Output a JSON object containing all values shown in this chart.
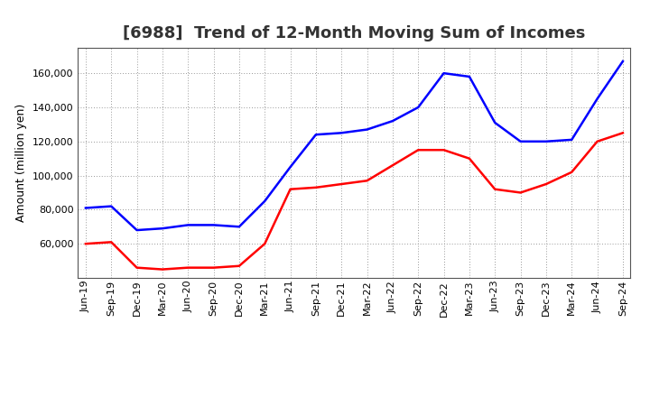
{
  "title": "[6988]  Trend of 12-Month Moving Sum of Incomes",
  "ylabel": "Amount (million yen)",
  "x_labels": [
    "Jun-19",
    "Sep-19",
    "Dec-19",
    "Mar-20",
    "Jun-20",
    "Sep-20",
    "Dec-20",
    "Mar-21",
    "Jun-21",
    "Sep-21",
    "Dec-21",
    "Mar-22",
    "Jun-22",
    "Sep-22",
    "Dec-22",
    "Mar-23",
    "Jun-23",
    "Sep-23",
    "Dec-23",
    "Mar-24",
    "Jun-24",
    "Sep-24"
  ],
  "ordinary_income": [
    81000,
    82000,
    68000,
    69000,
    71000,
    71000,
    70000,
    85000,
    105000,
    124000,
    125000,
    127000,
    132000,
    140000,
    160000,
    158000,
    131000,
    120000,
    120000,
    121000,
    145000,
    167000
  ],
  "net_income": [
    60000,
    61000,
    46000,
    45000,
    46000,
    46000,
    47000,
    60000,
    92000,
    93000,
    95000,
    97000,
    106000,
    115000,
    115000,
    110000,
    92000,
    90000,
    95000,
    102000,
    120000,
    125000
  ],
  "ordinary_color": "#0000ff",
  "net_color": "#ff0000",
  "background_color": "#ffffff",
  "grid_color": "#999999",
  "ylim_min": 40000,
  "ylim_max": 175000,
  "yticks": [
    60000,
    80000,
    100000,
    120000,
    140000,
    160000
  ],
  "line_width": 1.8,
  "title_fontsize": 13,
  "axis_fontsize": 9,
  "tick_fontsize": 8,
  "legend_fontsize": 9,
  "title_color": "#333333"
}
